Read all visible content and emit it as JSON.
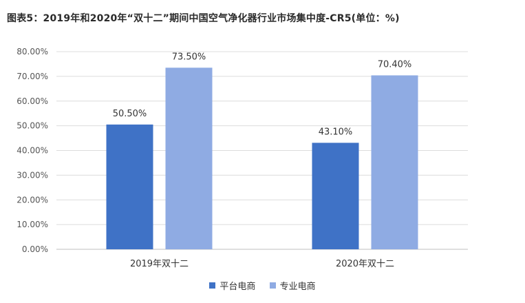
{
  "title": "图表5：2019年和2020年“双十二”期间中国空气净化器行业市场集中度-CR5(单位：%)",
  "chart_data": {
    "type": "bar",
    "categories": [
      "2019年双十二",
      "2020年双十二"
    ],
    "series": [
      {
        "name": "平台电商",
        "color": "#3f72c6",
        "values": [
          50.5,
          43.1
        ],
        "labels": [
          "50.50%",
          "43.10%"
        ]
      },
      {
        "name": "专业电商",
        "color": "#8fabe3",
        "values": [
          73.5,
          70.4
        ],
        "labels": [
          "73.50%",
          "70.40%"
        ]
      }
    ],
    "ylim": [
      0,
      80
    ],
    "yticks": [
      0,
      10,
      20,
      30,
      40,
      50,
      60,
      70,
      80
    ],
    "ytick_labels": [
      "0.00%",
      "10.00%",
      "20.00%",
      "30.00%",
      "40.00%",
      "50.00%",
      "60.00%",
      "70.00%",
      "80.00%"
    ],
    "grid": true,
    "legend": "bottom"
  }
}
